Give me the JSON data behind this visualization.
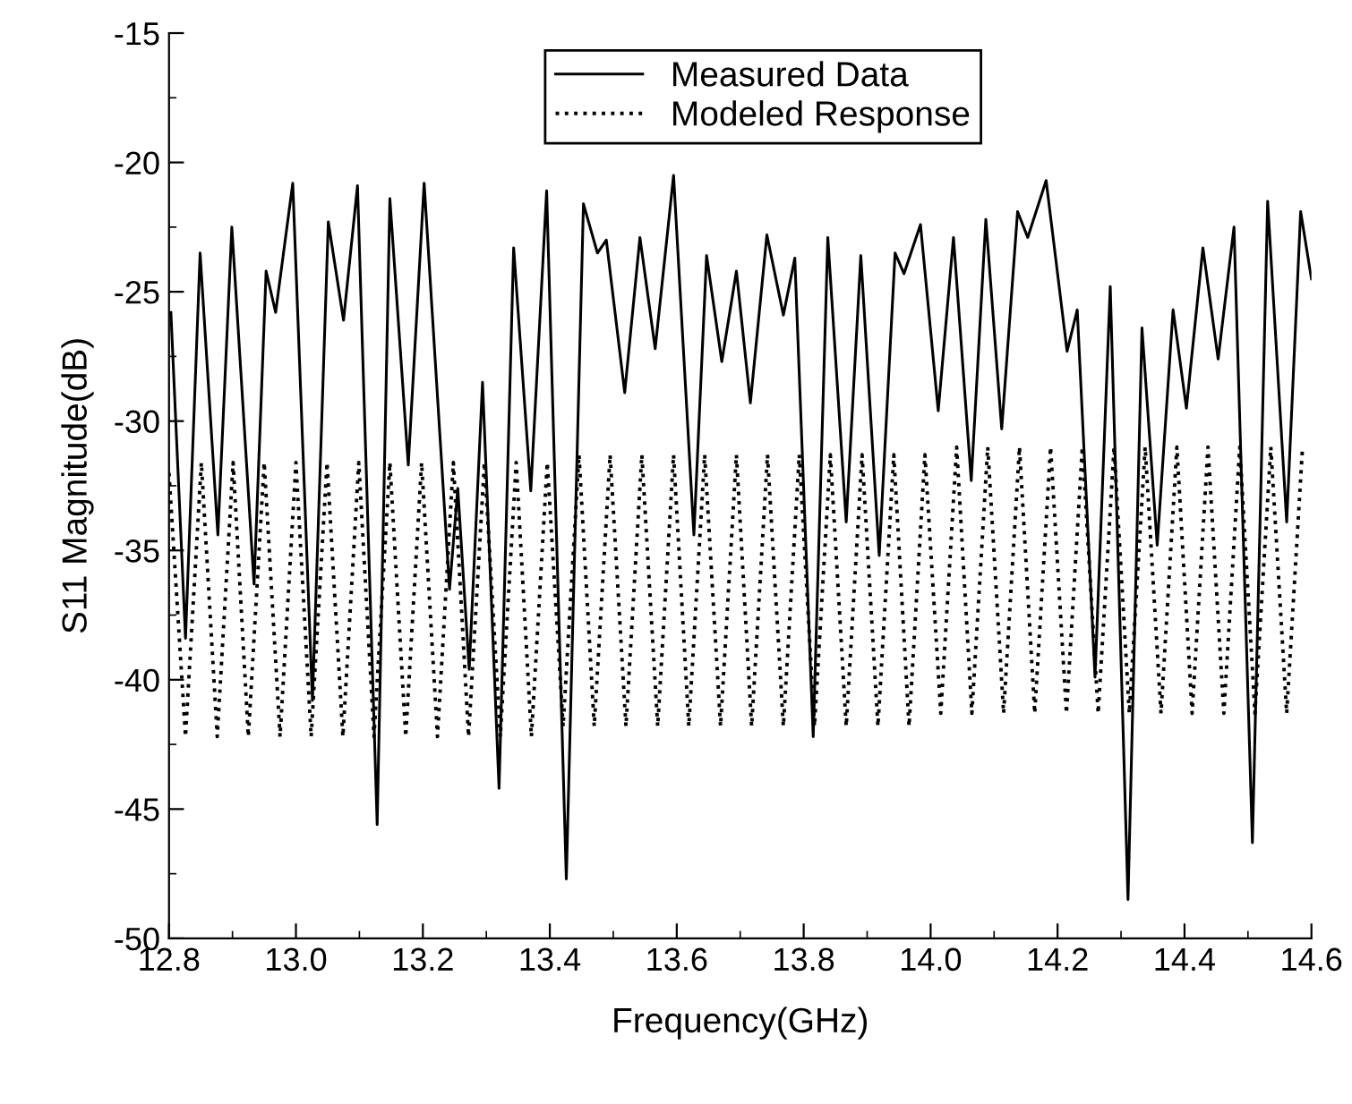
{
  "chart_data": {
    "type": "line",
    "xlabel": "Frequency(GHz)",
    "ylabel": "S11 Magnitude(dB)",
    "xlim": [
      12.8,
      14.6
    ],
    "ylim": [
      -50,
      -15
    ],
    "xticks": [
      {
        "value": 12.8,
        "label": "12.8"
      },
      {
        "value": 13.0,
        "label": "13.0"
      },
      {
        "value": 13.2,
        "label": "13.2"
      },
      {
        "value": 13.4,
        "label": "13.4"
      },
      {
        "value": 13.6,
        "label": "13.6"
      },
      {
        "value": 13.8,
        "label": "13.8"
      },
      {
        "value": 14.0,
        "label": "14.0"
      },
      {
        "value": 14.2,
        "label": "14.2"
      },
      {
        "value": 14.4,
        "label": "14.4"
      },
      {
        "value": 14.6,
        "label": "14.6"
      }
    ],
    "yticks": [
      -50,
      -45,
      -40,
      -35,
      -30,
      -25,
      -20,
      -15
    ],
    "grid": false,
    "legend": "top",
    "marker": "none",
    "series": [
      {
        "name": "Measured Data",
        "color": "#000000",
        "line_style": "solid",
        "x": [
          12.803,
          12.826,
          12.849,
          12.877,
          12.899,
          12.934,
          12.953,
          12.968,
          12.995,
          13.026,
          13.051,
          13.075,
          13.097,
          13.128,
          13.148,
          13.177,
          13.202,
          13.242,
          13.255,
          13.273,
          13.294,
          13.32,
          13.343,
          13.37,
          13.395,
          13.426,
          13.453,
          13.475,
          13.489,
          13.518,
          13.542,
          13.566,
          13.595,
          13.627,
          13.647,
          13.671,
          13.694,
          13.716,
          13.742,
          13.768,
          13.786,
          13.815,
          13.838,
          13.867,
          13.89,
          13.919,
          13.944,
          13.958,
          13.984,
          14.012,
          14.036,
          14.064,
          14.087,
          14.112,
          14.137,
          14.153,
          14.182,
          14.215,
          14.231,
          14.259,
          14.283,
          14.311,
          14.333,
          14.357,
          14.382,
          14.403,
          14.429,
          14.453,
          14.478,
          14.507,
          14.531,
          14.561,
          14.583,
          14.6
        ],
        "values": [
          -25.8,
          -38.4,
          -23.5,
          -34.4,
          -22.5,
          -36.3,
          -24.2,
          -25.8,
          -20.8,
          -40.8,
          -22.3,
          -26.1,
          -20.9,
          -45.6,
          -21.4,
          -31.7,
          -20.8,
          -36.5,
          -32.6,
          -39.6,
          -28.5,
          -44.2,
          -23.3,
          -32.7,
          -21.1,
          -47.7,
          -21.6,
          -23.5,
          -23.0,
          -28.9,
          -22.9,
          -27.2,
          -20.5,
          -34.4,
          -23.6,
          -27.7,
          -24.2,
          -29.3,
          -22.8,
          -25.9,
          -23.7,
          -42.2,
          -22.9,
          -33.9,
          -23.6,
          -35.2,
          -23.5,
          -24.3,
          -22.4,
          -29.6,
          -22.9,
          -32.3,
          -22.2,
          -30.3,
          -21.9,
          -22.9,
          -20.7,
          -27.3,
          -25.7,
          -39.9,
          -24.8,
          -48.5,
          -26.4,
          -34.8,
          -25.7,
          -29.5,
          -23.3,
          -27.6,
          -22.5,
          -46.3,
          -21.5,
          -33.9,
          -21.9,
          -24.5
        ]
      },
      {
        "name": "Modeled Response",
        "color": "#000000",
        "line_style": "dotted",
        "x": [
          12.8,
          12.826,
          12.851,
          12.876,
          12.901,
          12.925,
          12.95,
          12.975,
          13.0,
          13.024,
          13.049,
          13.074,
          13.099,
          13.123,
          13.148,
          13.173,
          13.198,
          13.223,
          13.248,
          13.272,
          13.297,
          13.322,
          13.347,
          13.371,
          13.396,
          13.421,
          13.446,
          13.47,
          13.495,
          13.52,
          13.545,
          13.57,
          13.595,
          13.619,
          13.644,
          13.669,
          13.694,
          13.718,
          13.743,
          13.768,
          13.793,
          13.817,
          13.842,
          13.867,
          13.892,
          13.917,
          13.942,
          13.966,
          13.991,
          14.016,
          14.041,
          14.065,
          14.09,
          14.115,
          14.14,
          14.164,
          14.189,
          14.214,
          14.239,
          14.264,
          14.289,
          14.313,
          14.338,
          14.363,
          14.388,
          14.412,
          14.437,
          14.462,
          14.487,
          14.511,
          14.536,
          14.561,
          14.586
        ],
        "values": [
          -32.0,
          -42.2,
          -31.6,
          -42.2,
          -31.6,
          -42.2,
          -31.6,
          -42.2,
          -31.6,
          -42.2,
          -31.6,
          -42.2,
          -31.6,
          -42.2,
          -31.6,
          -42.2,
          -31.6,
          -42.2,
          -31.6,
          -42.2,
          -31.6,
          -42.2,
          -31.6,
          -42.2,
          -31.6,
          -41.8,
          -31.3,
          -41.8,
          -31.3,
          -41.8,
          -31.3,
          -41.8,
          -31.3,
          -41.8,
          -31.3,
          -41.8,
          -31.3,
          -41.8,
          -31.3,
          -41.8,
          -31.3,
          -41.8,
          -31.3,
          -41.8,
          -31.3,
          -41.8,
          -31.3,
          -41.8,
          -31.3,
          -41.3,
          -31.0,
          -41.3,
          -31.0,
          -41.3,
          -31.0,
          -41.3,
          -31.0,
          -41.3,
          -31.0,
          -41.3,
          -31.0,
          -41.3,
          -31.0,
          -41.3,
          -31.0,
          -41.3,
          -31.0,
          -41.3,
          -31.0,
          -41.3,
          -31.0,
          -41.3,
          -31.0
        ]
      }
    ]
  }
}
